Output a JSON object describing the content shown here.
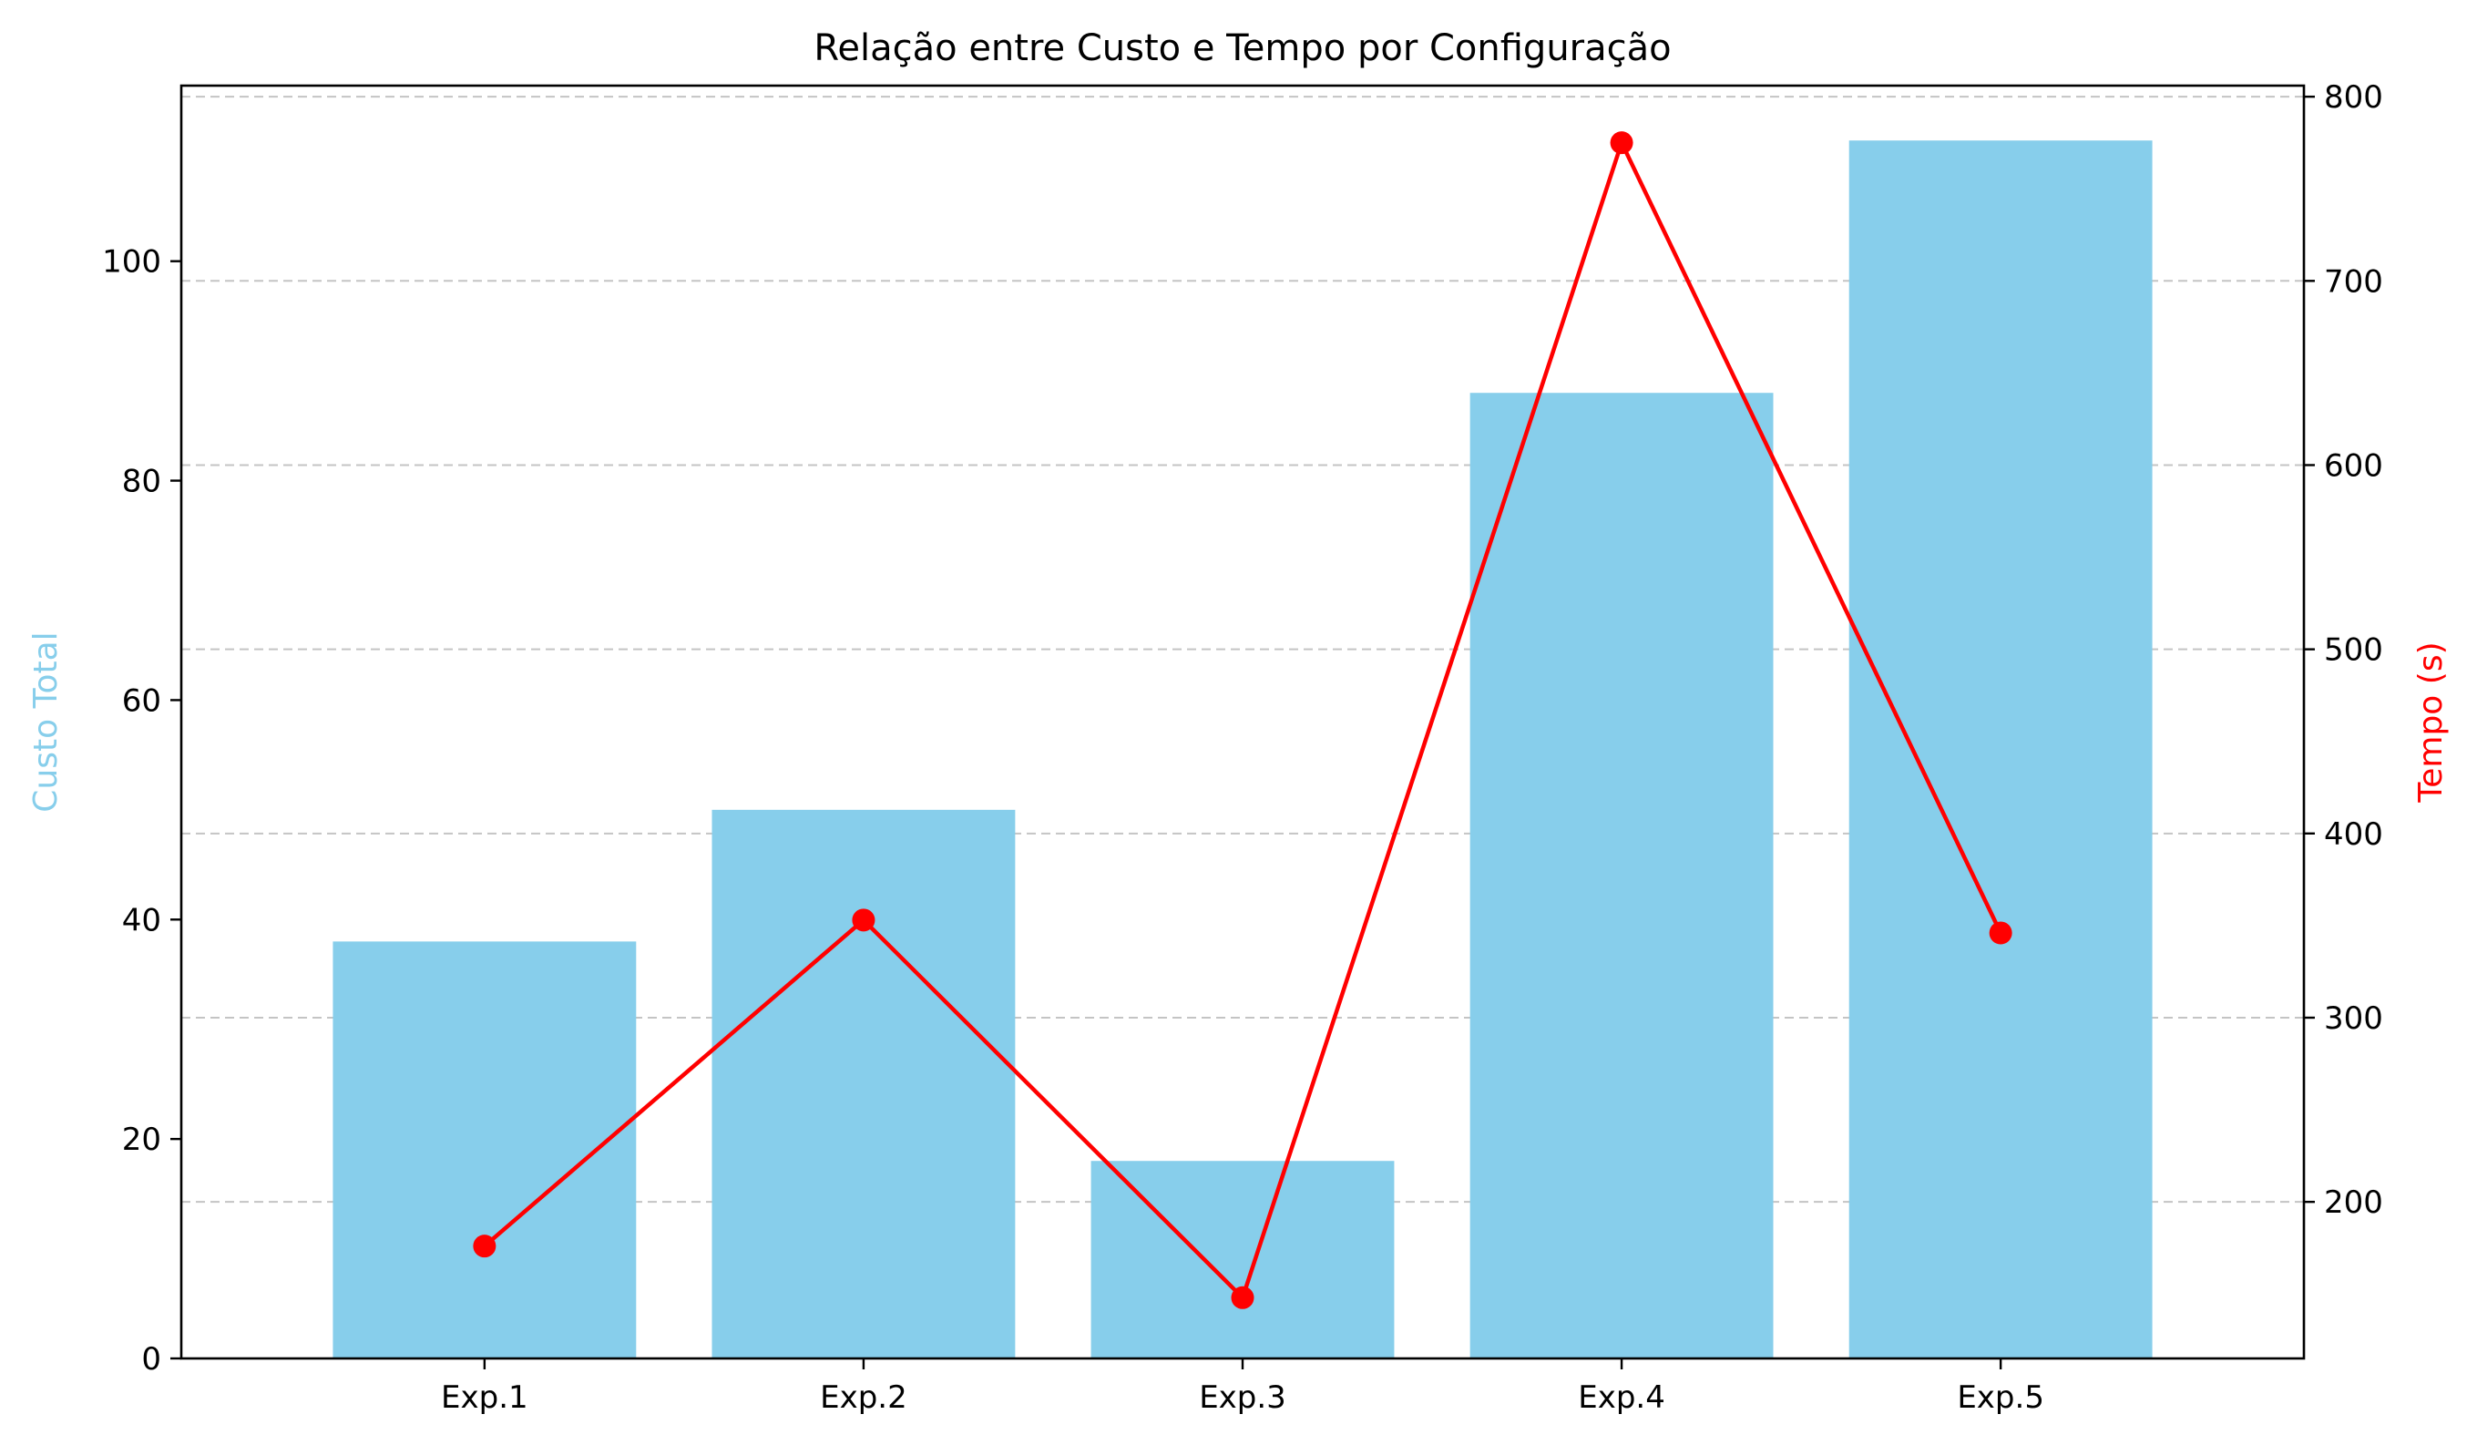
{
  "chart_data": {
    "type": "bar+line",
    "title": "Relação entre Custo e Tempo por Configuração",
    "categories": [
      "Exp.1",
      "Exp.2",
      "Exp.3",
      "Exp.4",
      "Exp.5"
    ],
    "series": [
      {
        "name": "Custo Total",
        "type": "bar",
        "axis": "left",
        "values": [
          38,
          50,
          18,
          88,
          111
        ],
        "color": "#87CEEB"
      },
      {
        "name": "Tempo (s)",
        "type": "line",
        "axis": "right",
        "values": [
          176,
          353,
          148,
          775,
          346
        ],
        "color": "#FF0000",
        "marker": "circle"
      }
    ],
    "y_left": {
      "label": "Custo Total",
      "label_color": "#87CEEB",
      "range": [
        0,
        116
      ],
      "ticks": [
        0,
        20,
        40,
        60,
        80,
        100
      ]
    },
    "y_right": {
      "label": "Tempo (s)",
      "label_color": "#FF0000",
      "range": [
        115,
        806
      ],
      "ticks": [
        200,
        300,
        400,
        500,
        600,
        700,
        800
      ]
    },
    "grid": "horizontal dashed at right-axis ticks"
  }
}
